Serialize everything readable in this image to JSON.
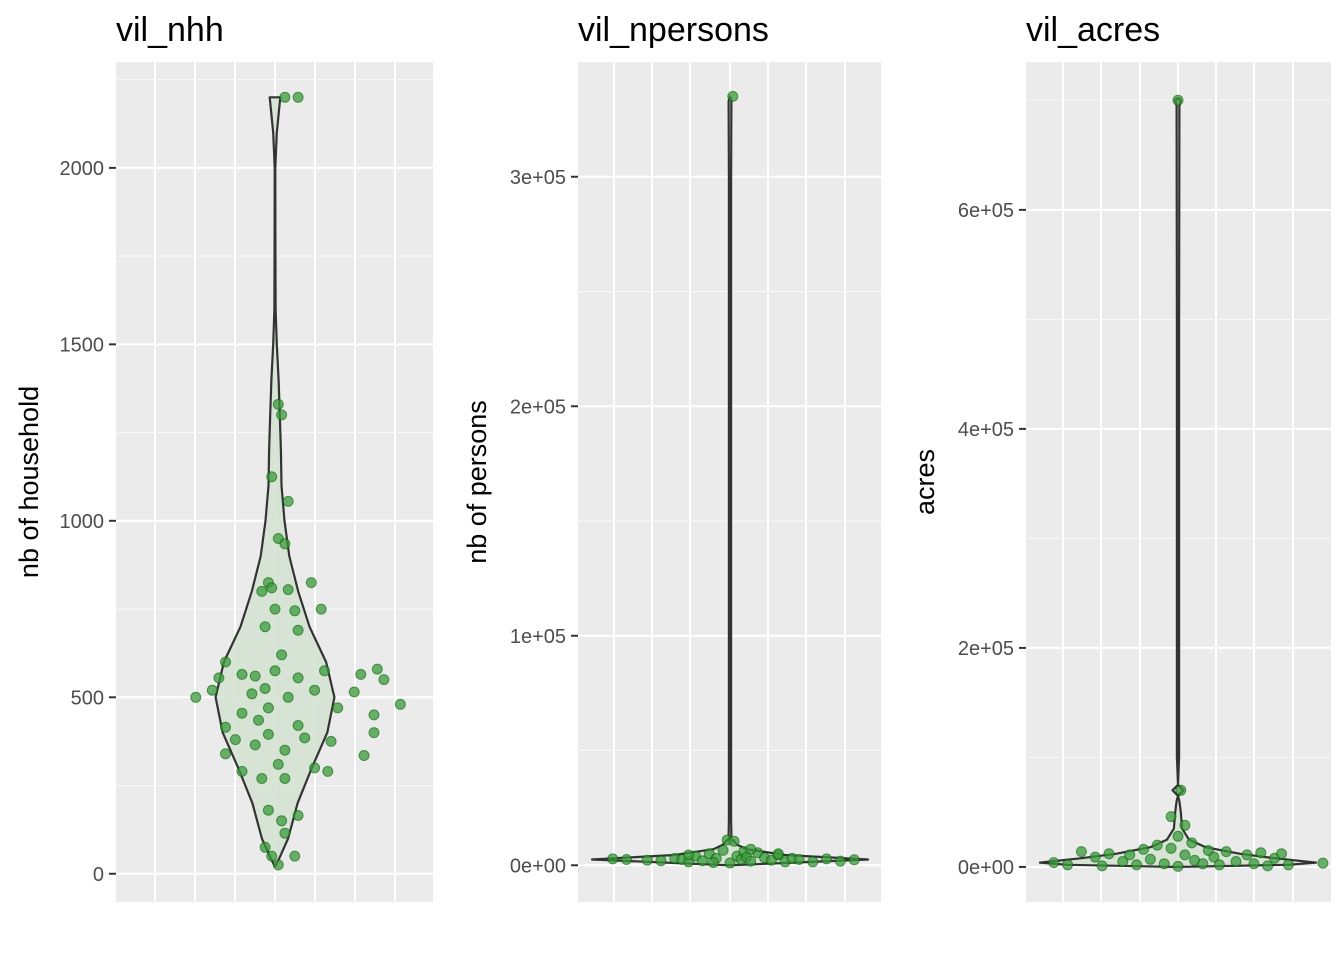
{
  "chart_data": [
    {
      "type": "violin",
      "title": "vil_nhh",
      "xlabel": "",
      "ylabel": "nb of household",
      "ylim": [
        -80,
        2300
      ],
      "yticks": [
        0,
        500,
        1000,
        1500,
        2000
      ],
      "ytick_labels": [
        "0",
        "500",
        "1000",
        "1500",
        "2000"
      ],
      "violin_density": [
        [
          20,
          0.0
        ],
        [
          50,
          0.09
        ],
        [
          100,
          0.22
        ],
        [
          200,
          0.38
        ],
        [
          300,
          0.62
        ],
        [
          400,
          0.88
        ],
        [
          500,
          1.0
        ],
        [
          600,
          0.86
        ],
        [
          700,
          0.58
        ],
        [
          800,
          0.39
        ],
        [
          900,
          0.24
        ],
        [
          1000,
          0.16
        ],
        [
          1100,
          0.11
        ],
        [
          1200,
          0.1
        ],
        [
          1300,
          0.08
        ],
        [
          1400,
          0.06
        ],
        [
          1500,
          0.03
        ],
        [
          1600,
          0.01
        ],
        [
          1800,
          0.006
        ],
        [
          2000,
          0.005
        ],
        [
          2100,
          0.03
        ],
        [
          2200,
          0.09
        ]
      ],
      "violin_half_width": 0.9,
      "points": [
        [
          0.15,
          2200
        ],
        [
          0.35,
          2200
        ],
        [
          0.05,
          1330
        ],
        [
          0.1,
          1300
        ],
        [
          -0.05,
          1125
        ],
        [
          0.2,
          1055
        ],
        [
          0.05,
          950
        ],
        [
          0.15,
          935
        ],
        [
          -0.1,
          825
        ],
        [
          -0.2,
          800
        ],
        [
          -0.05,
          810
        ],
        [
          0.2,
          805
        ],
        [
          0.55,
          825
        ],
        [
          0.0,
          750
        ],
        [
          0.3,
          745
        ],
        [
          0.7,
          750
        ],
        [
          -0.15,
          700
        ],
        [
          0.35,
          690
        ],
        [
          -0.75,
          600
        ],
        [
          -0.5,
          565
        ],
        [
          -0.3,
          560
        ],
        [
          -0.85,
          555
        ],
        [
          0.0,
          575
        ],
        [
          0.1,
          620
        ],
        [
          0.75,
          575
        ],
        [
          1.3,
          565
        ],
        [
          1.55,
          580
        ],
        [
          1.65,
          550
        ],
        [
          -0.95,
          520
        ],
        [
          -0.35,
          510
        ],
        [
          -0.15,
          525
        ],
        [
          0.35,
          555
        ],
        [
          0.6,
          520
        ],
        [
          1.2,
          515
        ],
        [
          -1.2,
          500
        ],
        [
          0.2,
          500
        ],
        [
          0.95,
          470
        ],
        [
          -0.1,
          470
        ],
        [
          1.9,
          480
        ],
        [
          -0.5,
          455
        ],
        [
          -0.25,
          435
        ],
        [
          0.35,
          420
        ],
        [
          1.5,
          450
        ],
        [
          -0.75,
          415
        ],
        [
          -0.1,
          395
        ],
        [
          0.45,
          385
        ],
        [
          -0.6,
          380
        ],
        [
          0.85,
          375
        ],
        [
          1.5,
          400
        ],
        [
          -0.3,
          365
        ],
        [
          0.15,
          350
        ],
        [
          1.35,
          335
        ],
        [
          -0.75,
          340
        ],
        [
          0.05,
          310
        ],
        [
          0.6,
          300
        ],
        [
          0.8,
          290
        ],
        [
          -0.5,
          290
        ],
        [
          -0.2,
          270
        ],
        [
          0.15,
          270
        ],
        [
          -0.1,
          180
        ],
        [
          0.35,
          165
        ],
        [
          0.1,
          150
        ],
        [
          0.15,
          115
        ],
        [
          -0.15,
          75
        ],
        [
          -0.05,
          50
        ],
        [
          0.3,
          50
        ],
        [
          0.05,
          25
        ]
      ]
    },
    {
      "type": "violin",
      "title": "vil_npersons",
      "xlabel": "",
      "ylabel": "nb of persons",
      "ylim": [
        -16000,
        350000
      ],
      "yticks": [
        0,
        100000,
        200000,
        300000
      ],
      "ytick_labels": [
        "0e+00",
        "1e+05",
        "2e+05",
        "3e+05"
      ],
      "violin_density": [
        [
          0,
          0.0
        ],
        [
          1000,
          0.4
        ],
        [
          2500,
          1.0
        ],
        [
          4500,
          0.4
        ],
        [
          7000,
          0.12
        ],
        [
          9000,
          0.05
        ],
        [
          10500,
          0.03
        ],
        [
          12000,
          0.0
        ],
        [
          13000,
          0.01
        ],
        [
          20000,
          0.008
        ],
        [
          100000,
          0.008
        ],
        [
          200000,
          0.008
        ],
        [
          300000,
          0.008
        ],
        [
          333000,
          0.01
        ],
        [
          335000,
          0.0
        ]
      ],
      "violin_half_width": 1.0,
      "points": [
        [
          0.02,
          335000
        ],
        [
          -0.02,
          11000
        ],
        [
          0.03,
          10500
        ],
        [
          -0.85,
          2800
        ],
        [
          -0.75,
          2500
        ],
        [
          -0.6,
          2200
        ],
        [
          -0.5,
          2000
        ],
        [
          -0.4,
          3000
        ],
        [
          -0.35,
          2500
        ],
        [
          -0.3,
          1500
        ],
        [
          -0.25,
          4000
        ],
        [
          -0.2,
          2000
        ],
        [
          -0.15,
          5000
        ],
        [
          -0.1,
          3000
        ],
        [
          -0.05,
          6500
        ],
        [
          0.0,
          1000
        ],
        [
          0.05,
          4000
        ],
        [
          0.08,
          2500
        ],
        [
          0.1,
          6000
        ],
        [
          0.12,
          3500
        ],
        [
          0.15,
          1800
        ],
        [
          0.2,
          5500
        ],
        [
          0.25,
          3200
        ],
        [
          0.3,
          2200
        ],
        [
          0.35,
          4500
        ],
        [
          0.4,
          1500
        ],
        [
          0.45,
          3000
        ],
        [
          0.5,
          2500
        ],
        [
          0.6,
          1500
        ],
        [
          0.7,
          2800
        ],
        [
          0.8,
          1800
        ],
        [
          0.9,
          2400
        ],
        [
          0.35,
          5000
        ],
        [
          -0.3,
          4500
        ],
        [
          -0.12,
          1200
        ],
        [
          0.15,
          7000
        ]
      ]
    },
    {
      "type": "violin",
      "title": "vil_acres",
      "xlabel": "",
      "ylabel": "acres",
      "ylim": [
        -32000,
        735000
      ],
      "yticks": [
        0,
        200000,
        400000,
        600000
      ],
      "ytick_labels": [
        "0e+00",
        "2e+05",
        "4e+05",
        "6e+05"
      ],
      "violin_density": [
        [
          0,
          0.0
        ],
        [
          2000,
          0.8
        ],
        [
          4000,
          1.0
        ],
        [
          8000,
          0.7
        ],
        [
          12000,
          0.45
        ],
        [
          18000,
          0.2
        ],
        [
          25000,
          0.08
        ],
        [
          35000,
          0.03
        ],
        [
          50000,
          0.02
        ],
        [
          60000,
          0.01
        ],
        [
          65000,
          0.0
        ],
        [
          70000,
          0.04
        ],
        [
          75000,
          0.0
        ],
        [
          100000,
          0.008
        ],
        [
          300000,
          0.008
        ],
        [
          500000,
          0.008
        ],
        [
          695000,
          0.01
        ],
        [
          700000,
          0.02
        ],
        [
          702000,
          0.0
        ]
      ],
      "violin_half_width": 1.0,
      "points": [
        [
          0.0,
          700000
        ],
        [
          0.02,
          70000
        ],
        [
          -0.05,
          46000
        ],
        [
          0.05,
          38000
        ],
        [
          0.0,
          28000
        ],
        [
          -0.8,
          2000
        ],
        [
          -0.7,
          14000
        ],
        [
          -0.6,
          9000
        ],
        [
          -0.55,
          1000
        ],
        [
          -0.5,
          12000
        ],
        [
          -0.4,
          5000
        ],
        [
          -0.35,
          11000
        ],
        [
          -0.3,
          2000
        ],
        [
          -0.25,
          16000
        ],
        [
          -0.2,
          7000
        ],
        [
          -0.15,
          20000
        ],
        [
          -0.1,
          3000
        ],
        [
          -0.05,
          17000
        ],
        [
          0.0,
          500
        ],
        [
          0.05,
          11000
        ],
        [
          0.1,
          22000
        ],
        [
          0.12,
          6000
        ],
        [
          0.18,
          3000
        ],
        [
          0.22,
          15000
        ],
        [
          0.26,
          9000
        ],
        [
          0.3,
          2000
        ],
        [
          0.35,
          14000
        ],
        [
          0.42,
          5000
        ],
        [
          0.5,
          11000
        ],
        [
          0.55,
          3000
        ],
        [
          0.6,
          13000
        ],
        [
          0.65,
          1000
        ],
        [
          0.7,
          8000
        ],
        [
          0.75,
          12000
        ],
        [
          0.8,
          2000
        ],
        [
          1.05,
          3500
        ],
        [
          -0.9,
          4000
        ]
      ]
    }
  ],
  "colors": {
    "panel_background": "#ebebeb",
    "grid_major": "#ffffff",
    "violin_fill": "#d5e3d3",
    "violin_outline": "#333333",
    "point_fill": "#3c9a3c",
    "point_stroke": "#006400",
    "tick_text": "#4d4d4d"
  }
}
